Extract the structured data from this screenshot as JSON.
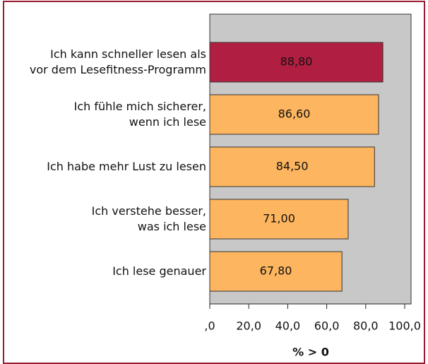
{
  "chart_data": {
    "type": "barh",
    "categories": [
      "Ich kann schneller lesen als\nvor dem Lesefitness-Programm",
      "Ich fühle mich sicherer,\nwenn ich lese",
      "Ich habe mehr Lust zu lesen",
      "Ich verstehe besser,\nwas ich lese",
      "Ich lese genauer"
    ],
    "values": [
      88.8,
      86.6,
      84.5,
      71.0,
      67.8
    ],
    "value_labels": [
      "88,80",
      "86,60",
      "84,50",
      "71,00",
      "67,80"
    ],
    "colors": [
      "#b01f41",
      "#fdb55f",
      "#fdb55f",
      "#fdb55f",
      "#fdb55f"
    ],
    "xlim": [
      0,
      100
    ],
    "xticks": [
      {
        "value": 0,
        "label": ",0"
      },
      {
        "value": 20,
        "label": "20,0"
      },
      {
        "value": 40,
        "label": "40,0"
      },
      {
        "value": 60,
        "label": "60,0"
      },
      {
        "value": 80,
        "label": "80,0"
      },
      {
        "value": 100,
        "label": "100,0"
      }
    ],
    "xlabel": "% > 0"
  }
}
